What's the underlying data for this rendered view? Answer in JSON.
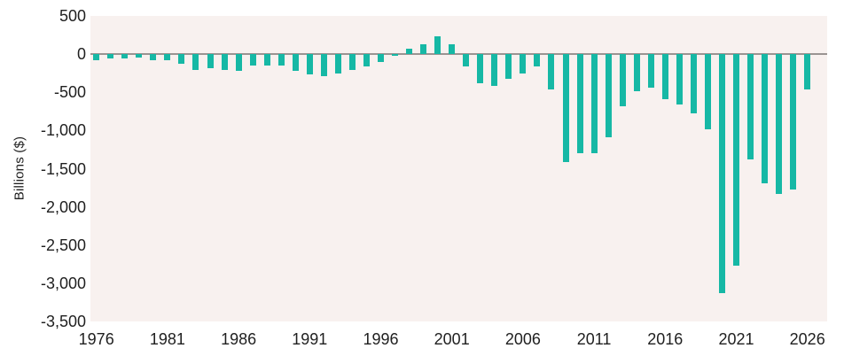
{
  "chart_data": {
    "type": "bar",
    "title": "",
    "xlabel": "",
    "ylabel": "Billions ($)",
    "legend": false,
    "grid": false,
    "ylim": [
      -3500,
      500
    ],
    "bar_color": "#16b8a5",
    "plot_bg": "#f8f1ef",
    "zero_line_color": "#9a9492",
    "text_color": "#1f1f1f",
    "x": [
      1976,
      1977,
      1978,
      1979,
      1980,
      1981,
      1982,
      1983,
      1984,
      1985,
      1986,
      1987,
      1988,
      1989,
      1990,
      1991,
      1992,
      1993,
      1994,
      1995,
      1996,
      1997,
      1998,
      1999,
      2000,
      2001,
      2002,
      2003,
      2004,
      2005,
      2006,
      2007,
      2008,
      2009,
      2010,
      2011,
      2012,
      2013,
      2014,
      2015,
      2016,
      2017,
      2018,
      2019,
      2020,
      2021,
      2022,
      2023,
      2024,
      2025,
      2026
    ],
    "values": [
      -74,
      -54,
      -59,
      -41,
      -74,
      -79,
      -128,
      -208,
      -185,
      -212,
      -221,
      -150,
      -155,
      -153,
      -221,
      -269,
      -290,
      -255,
      -203,
      -164,
      -107,
      -22,
      69,
      126,
      236,
      128,
      -158,
      -378,
      -413,
      -318,
      -248,
      -161,
      -459,
      -1413,
      -1294,
      -1300,
      -1087,
      -680,
      -485,
      -442,
      -585,
      -665,
      -779,
      -984,
      -3132,
      -2772,
      -1375,
      -1695,
      -1833,
      -1775,
      -463
    ],
    "yticks": [
      500,
      0,
      -500,
      -1000,
      -1500,
      -2000,
      -2500,
      -3000,
      -3500
    ],
    "ytick_labels": [
      "500",
      "0",
      "-500",
      "-1,000",
      "-1,500",
      "-2,000",
      "-2,500",
      "-3,000",
      "-3,500"
    ],
    "xticks": [
      1976,
      1981,
      1986,
      1991,
      1996,
      2001,
      2006,
      2011,
      2016,
      2021,
      2026
    ],
    "xtick_labels": [
      "1976",
      "1981",
      "1986",
      "1991",
      "1996",
      "2001",
      "2006",
      "2011",
      "2016",
      "2021",
      "2026"
    ]
  }
}
